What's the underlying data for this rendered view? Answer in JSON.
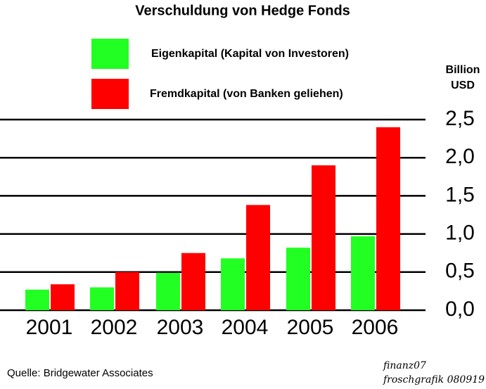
{
  "chart_data": {
    "type": "bar",
    "title": "Verschuldung von Hedge Fonds",
    "y_unit": [
      "Billion",
      "USD"
    ],
    "categories": [
      "2001",
      "2002",
      "2003",
      "2004",
      "2005",
      "2006"
    ],
    "series": [
      {
        "name": "Eigenkapital (Kapital von Investoren)",
        "color": "#22ff22",
        "values": [
          0.27,
          0.3,
          0.49,
          0.68,
          0.82,
          0.97
        ]
      },
      {
        "name": "Fremdkapital (von Banken geliehen)",
        "color": "#ff0000",
        "values": [
          0.34,
          0.5,
          0.75,
          1.38,
          1.9,
          2.4
        ]
      }
    ],
    "ylim": [
      0,
      2.5
    ],
    "yticks": [
      {
        "value": 0,
        "label": "0,0"
      },
      {
        "value": 0.5,
        "label": "0,5"
      },
      {
        "value": 1,
        "label": "1,0"
      },
      {
        "value": 1.5,
        "label": "1,5"
      },
      {
        "value": 2,
        "label": "2,0"
      },
      {
        "value": 2.5,
        "label": "2,5"
      }
    ],
    "grid": true,
    "source": "Quelle: Bridgewater Associates",
    "credit": [
      "finanz07",
      "froschgrafik 080919"
    ]
  }
}
